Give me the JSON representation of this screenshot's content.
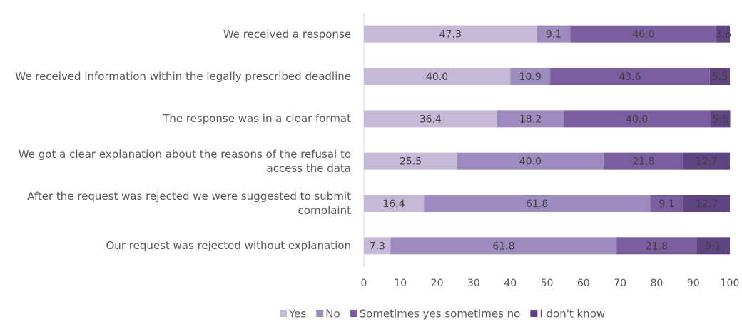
{
  "chart_data": {
    "type": "stacked-barh",
    "categories": [
      "We received a response",
      "We received information within the legally prescribed deadline",
      "The response was in a clear format",
      "We got a clear explanation about the reasons of the refusal to access the data",
      "After the request was rejected we were suggested to submit complaint",
      "Our request was rejected without explanation"
    ],
    "series": [
      {
        "name": "Yes",
        "color": "#c5b9d7",
        "values": [
          47.3,
          40.0,
          36.4,
          25.5,
          16.4,
          7.3
        ],
        "value_labels": [
          "47.3",
          "40.0",
          "36.4",
          "25.5",
          "16.4",
          "7.3"
        ]
      },
      {
        "name": "No",
        "color": "#9d8bbd",
        "values": [
          9.1,
          10.9,
          18.2,
          40.0,
          61.8,
          61.8
        ],
        "value_labels": [
          "9.1",
          "10.9",
          "18.2",
          "40.0",
          "61.8",
          "61.8"
        ]
      },
      {
        "name": "Sometimes yes sometimes no",
        "color": "#7a5e9f",
        "values": [
          40.0,
          43.6,
          40.0,
          21.8,
          9.1,
          21.8
        ],
        "value_labels": [
          "40.0",
          "43.6",
          "40.0",
          "21.8",
          "9.1",
          "21.8"
        ]
      },
      {
        "name": "I don't know",
        "color": "#5e4582",
        "values": [
          3.6,
          5.5,
          5.5,
          12.7,
          12.7,
          9.1
        ],
        "value_labels": [
          "3.6",
          "5.5",
          "5.5",
          "12.7",
          "12.7",
          "9.1"
        ]
      }
    ],
    "xlim": [
      0,
      100
    ],
    "xticks": [
      0,
      10,
      20,
      30,
      40,
      50,
      60,
      70,
      80,
      90,
      100
    ],
    "grid": false,
    "legend": "bottom"
  }
}
